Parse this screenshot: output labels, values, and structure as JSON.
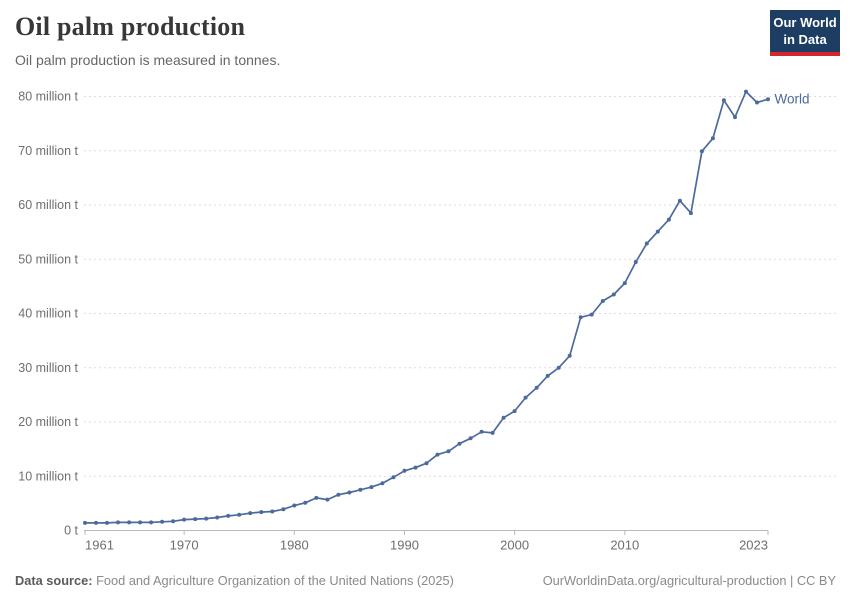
{
  "header": {
    "title": "Oil palm production",
    "subtitle": "Oil palm production is measured in tonnes.",
    "logo": {
      "line1": "Our World",
      "line2": "in Data"
    }
  },
  "footer": {
    "source_label": "Data source:",
    "source_text": "Food and Agriculture Organization of the United Nations (2025)",
    "link_text": "OurWorldinData.org/agricultural-production | CC BY"
  },
  "colors": {
    "series": "#4C6A9C",
    "grid": "#dcdcdc",
    "axis": "#b8b8b8",
    "tick_label": "#6e6e6e",
    "logo_bg": "#1d3d63",
    "logo_red": "#d5262e",
    "title_text": "#383838",
    "subtitle_text": "#666666"
  },
  "chart_data": {
    "type": "line",
    "title": "Oil palm production",
    "unit": "tonnes",
    "ylabel": "",
    "xlabel": "",
    "grid": "horizontal-dashed",
    "legend": "end-of-line-label",
    "ylim": [
      0,
      80
    ],
    "yticks": [
      {
        "value": 0,
        "label": "0 t"
      },
      {
        "value": 10,
        "label": "10 million t"
      },
      {
        "value": 20,
        "label": "20 million t"
      },
      {
        "value": 30,
        "label": "30 million t"
      },
      {
        "value": 40,
        "label": "40 million t"
      },
      {
        "value": 50,
        "label": "50 million t"
      },
      {
        "value": 60,
        "label": "60 million t"
      },
      {
        "value": 70,
        "label": "70 million t"
      },
      {
        "value": 80,
        "label": "80 million t"
      }
    ],
    "xticks": [
      1961,
      1970,
      1980,
      1990,
      2000,
      2010,
      2023
    ],
    "x": [
      1961,
      1962,
      1963,
      1964,
      1965,
      1966,
      1967,
      1968,
      1969,
      1970,
      1971,
      1972,
      1973,
      1974,
      1975,
      1976,
      1977,
      1978,
      1979,
      1980,
      1981,
      1982,
      1983,
      1984,
      1985,
      1986,
      1987,
      1988,
      1989,
      1990,
      1991,
      1992,
      1993,
      1994,
      1995,
      1996,
      1997,
      1998,
      1999,
      2000,
      2001,
      2002,
      2003,
      2004,
      2005,
      2006,
      2007,
      2008,
      2009,
      2010,
      2011,
      2012,
      2013,
      2014,
      2015,
      2016,
      2017,
      2018,
      2019,
      2020,
      2021,
      2022,
      2023
    ],
    "series": [
      {
        "name": "World",
        "color": "#4C6A9C",
        "unit": "million tonnes",
        "values": [
          1.4,
          1.4,
          1.4,
          1.5,
          1.5,
          1.5,
          1.5,
          1.6,
          1.7,
          2.0,
          2.1,
          2.2,
          2.4,
          2.7,
          2.9,
          3.2,
          3.4,
          3.5,
          3.9,
          4.6,
          5.1,
          6.0,
          5.7,
          6.6,
          7.0,
          7.5,
          8.0,
          8.7,
          9.8,
          11.0,
          11.6,
          12.4,
          14.0,
          14.6,
          16.0,
          17.0,
          18.2,
          18.0,
          20.8,
          22.0,
          24.5,
          26.3,
          28.5,
          30.0,
          32.2,
          39.3,
          39.8,
          42.3,
          43.5,
          45.6,
          49.5,
          52.9,
          55.1,
          57.3,
          60.8,
          58.5,
          69.9,
          72.3,
          79.3,
          76.2,
          80.9,
          78.9,
          79.5
        ]
      }
    ]
  }
}
